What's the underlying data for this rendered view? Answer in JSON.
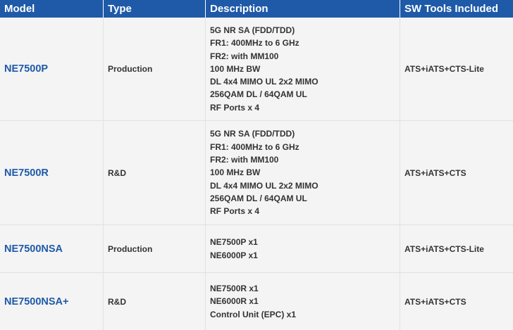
{
  "header": {
    "model": "Model",
    "type": "Type",
    "description": "Description",
    "sw_tools": "SW Tools Included"
  },
  "rows": [
    {
      "model": "NE7500P",
      "type": "Production",
      "description": [
        "5G NR SA (FDD/TDD)",
        "FR1: 400MHz to 6 GHz",
        "FR2: with MM100",
        "100 MHz BW",
        "DL 4x4 MIMO UL 2x2 MIMO",
        "256QAM DL / 64QAM UL",
        "RF Ports x 4"
      ],
      "sw_tools": "ATS+iATS+CTS-Lite"
    },
    {
      "model": "NE7500R",
      "type": "R&D",
      "description": [
        "5G NR SA (FDD/TDD)",
        "FR1: 400MHz to 6 GHz",
        "FR2: with MM100",
        "100 MHz BW",
        "DL 4x4 MIMO UL 2x2 MIMO",
        "256QAM DL / 64QAM UL",
        "RF Ports x 4"
      ],
      "sw_tools": "ATS+iATS+CTS"
    },
    {
      "model": "NE7500NSA",
      "type": "Production",
      "description": [
        "NE7500P x1",
        "NE6000P x1"
      ],
      "sw_tools": "ATS+iATS+CTS-Lite"
    },
    {
      "model": "NE7500NSA+",
      "type": "R&D",
      "description": [
        "NE7500R x1",
        "NE6000R x1",
        "Control Unit (EPC) x1"
      ],
      "sw_tools": "ATS+iATS+CTS"
    }
  ],
  "colors": {
    "header_bg": "#1e5aa8",
    "model_text": "#1e5aa8",
    "row_bg": "#f5f5f5"
  }
}
